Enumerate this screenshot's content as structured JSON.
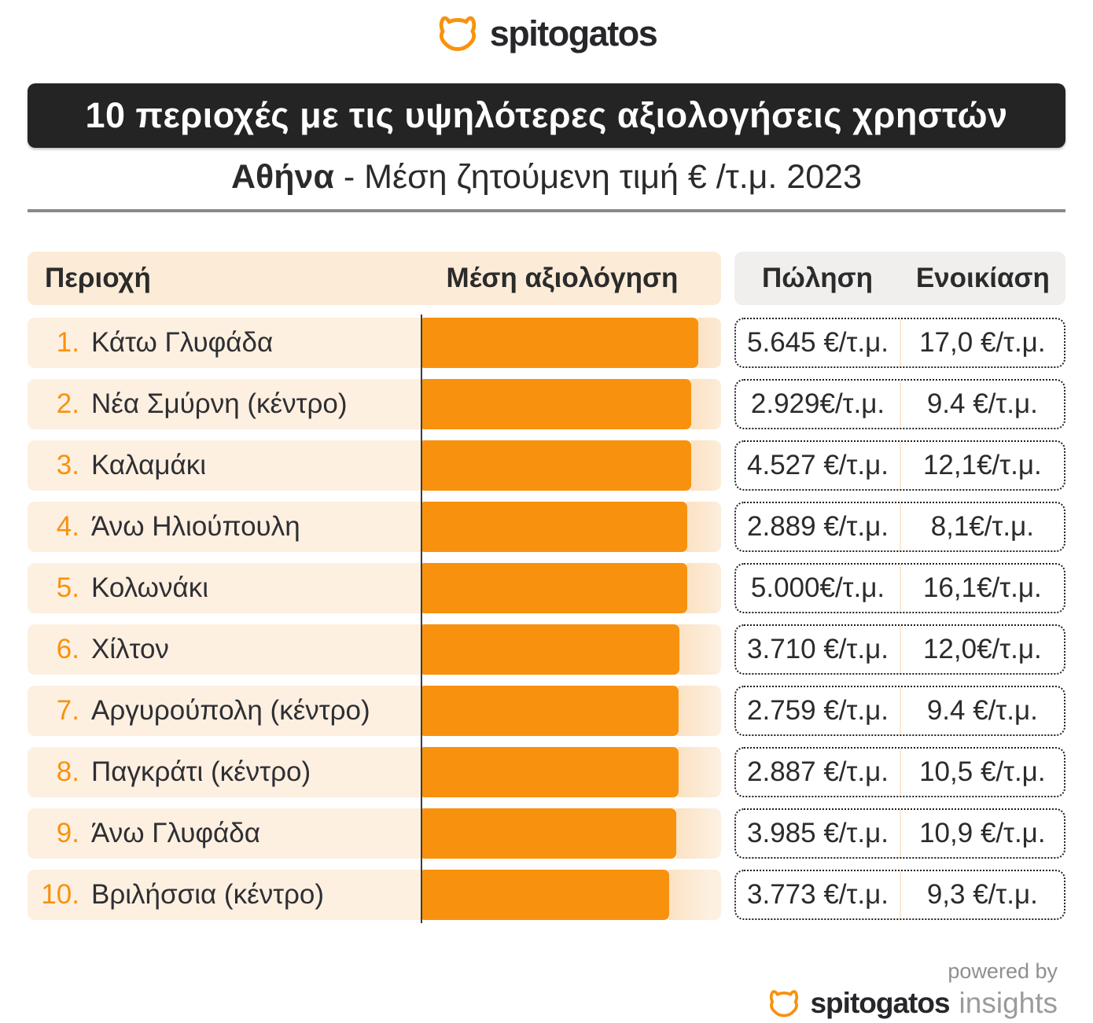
{
  "brand": {
    "logo_text": "spitogatos",
    "footer_powered_by": "powered by",
    "footer_brand": "spitogatos",
    "footer_suffix": "insights"
  },
  "header": {
    "title": "10 περιοχές με τις υψηλότερες αξιολογήσεις χρηστών",
    "subtitle_bold": "Αθήνα",
    "subtitle_rest": " - Μέση ζητούμενη τιμή € /τ.μ. 2023"
  },
  "table": {
    "col_area": "Περιοχή",
    "col_rating": "Μέση αξιολόγηση",
    "col_sale": "Πώληση",
    "col_rent": "Ενοικίαση",
    "rows": [
      {
        "rank": "1.",
        "name": "Κάτω Γλυφάδα",
        "bar_pct": 92.1,
        "sale": "5.645 €/τ.μ.",
        "rent": "17,0 €/τ.μ."
      },
      {
        "rank": "2.",
        "name": "Νέα Σμύρνη (κέντρο)",
        "bar_pct": 89.8,
        "sale": "2.929€/τ.μ.",
        "rent": "9.4 €/τ.μ."
      },
      {
        "rank": "3.",
        "name": "Καλαμάκι",
        "bar_pct": 89.8,
        "sale": "4.527 €/τ.μ.",
        "rent": "12,1€/τ.μ."
      },
      {
        "rank": "4.",
        "name": "Άνω Ηλιούπουλη",
        "bar_pct": 88.5,
        "sale": "2.889 €/τ.μ.",
        "rent": "8,1€/τ.μ."
      },
      {
        "rank": "5.",
        "name": "Κολωνάκι",
        "bar_pct": 88.5,
        "sale": "5.000€/τ.μ.",
        "rent": "16,1€/τ.μ."
      },
      {
        "rank": "6.",
        "name": "Χίλτον",
        "bar_pct": 85.8,
        "sale": "3.710 €/τ.μ.",
        "rent": "12,0€/τ.μ."
      },
      {
        "rank": "7.",
        "name": "Αργυρούπολη (κέντρο)",
        "bar_pct": 85.6,
        "sale": "2.759 €/τ.μ.",
        "rent": "9.4 €/τ.μ."
      },
      {
        "rank": "8.",
        "name": "Παγκράτι (κέντρο)",
        "bar_pct": 85.6,
        "sale": "2.887 €/τ.μ.",
        "rent": "10,5 €/τ.μ."
      },
      {
        "rank": "9.",
        "name": "Άνω Γλυφάδα",
        "bar_pct": 84.8,
        "sale": "3.985 €/τ.μ.",
        "rent": "10,9 €/τ.μ."
      },
      {
        "rank": "10.",
        "name": "Βριλήσσια (κέντρο)",
        "bar_pct": 82.4,
        "sale": "3.773 €/τ.μ.",
        "rent": "9,3 €/τ.μ."
      }
    ]
  },
  "colors": {
    "accent_orange": "#F8920E",
    "row_bg": "#FDF0E1",
    "header_left_bg": "#FCEBD7",
    "header_right_bg": "#F0EFEE",
    "banner_bg": "#242424",
    "text_dark": "#2B2B2B",
    "price_divider_peach": "#FCE8D3",
    "rule_gray": "#8A8A8A"
  },
  "chart_data": {
    "type": "bar",
    "orientation": "horizontal",
    "title": "10 περιοχές με τις υψηλότερες αξιολογήσεις χρηστών",
    "subtitle": "Αθήνα - Μέση ζητούμενη τιμή € /τ.μ. 2023",
    "categories": [
      "Κάτω Γλυφάδα",
      "Νέα Σμύρνη (κέντρο)",
      "Καλαμάκι",
      "Άνω Ηλιούπουλη",
      "Κολωνάκι",
      "Χίλτον",
      "Αργυρούπολη (κέντρο)",
      "Παγκράτι (κέντρο)",
      "Άνω Γλυφάδα",
      "Βριλήσσια (κέντρο)"
    ],
    "series": [
      {
        "name": "Μέση αξιολόγηση",
        "unit": "relative bar length (% of longest bar; no numeric labels shown in image)",
        "values": [
          100,
          97.4,
          97.4,
          96.0,
          96.0,
          93.2,
          92.9,
          92.9,
          92.0,
          89.5
        ]
      },
      {
        "name": "Πώληση",
        "values": [
          "5.645 €/τ.μ.",
          "2.929€/τ.μ.",
          "4.527 €/τ.μ.",
          "2.889 €/τ.μ.",
          "5.000€/τ.μ.",
          "3.710 €/τ.μ.",
          "2.759 €/τ.μ.",
          "2.887 €/τ.μ.",
          "3.985 €/τ.μ.",
          "3.773 €/τ.μ."
        ]
      },
      {
        "name": "Ενοικίαση",
        "values": [
          "17,0 €/τ.μ.",
          "9.4 €/τ.μ.",
          "12,1€/τ.μ.",
          "8,1€/τ.μ.",
          "16,1€/τ.μ.",
          "12,0€/τ.μ.",
          "9.4 €/τ.μ.",
          "10,5 €/τ.μ.",
          "10,9 €/τ.μ.",
          "9,3 €/τ.μ."
        ]
      }
    ],
    "legend_position": "none",
    "grid": false,
    "bar_color": "#F8920E"
  }
}
